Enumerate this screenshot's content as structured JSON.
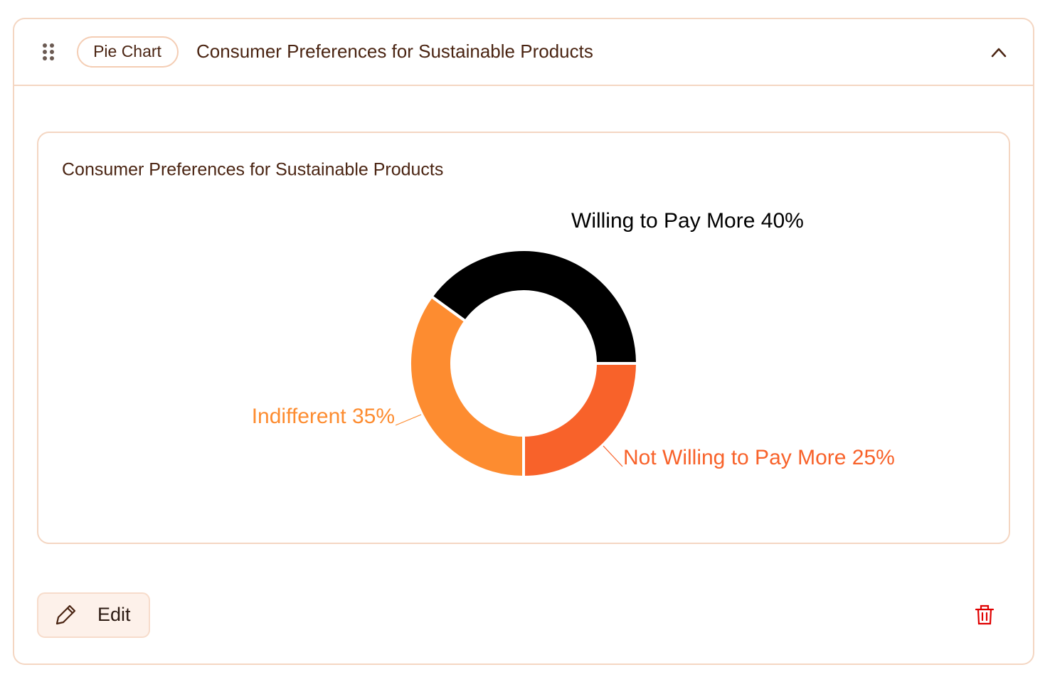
{
  "header": {
    "badge": "Pie Chart",
    "title": "Consumer Preferences for Sustainable Products"
  },
  "chart_data": {
    "type": "pie",
    "title": "Consumer Preferences for Sustainable Products",
    "categories": [
      "Willing to Pay More",
      "Indifferent",
      "Not Willing to Pay More"
    ],
    "values": [
      40,
      35,
      25
    ],
    "value_labels": [
      "40%",
      "35%",
      "25%"
    ],
    "colors": [
      "#000000",
      "#fd8c30",
      "#f8622a"
    ]
  },
  "footer": {
    "edit": "Edit"
  }
}
